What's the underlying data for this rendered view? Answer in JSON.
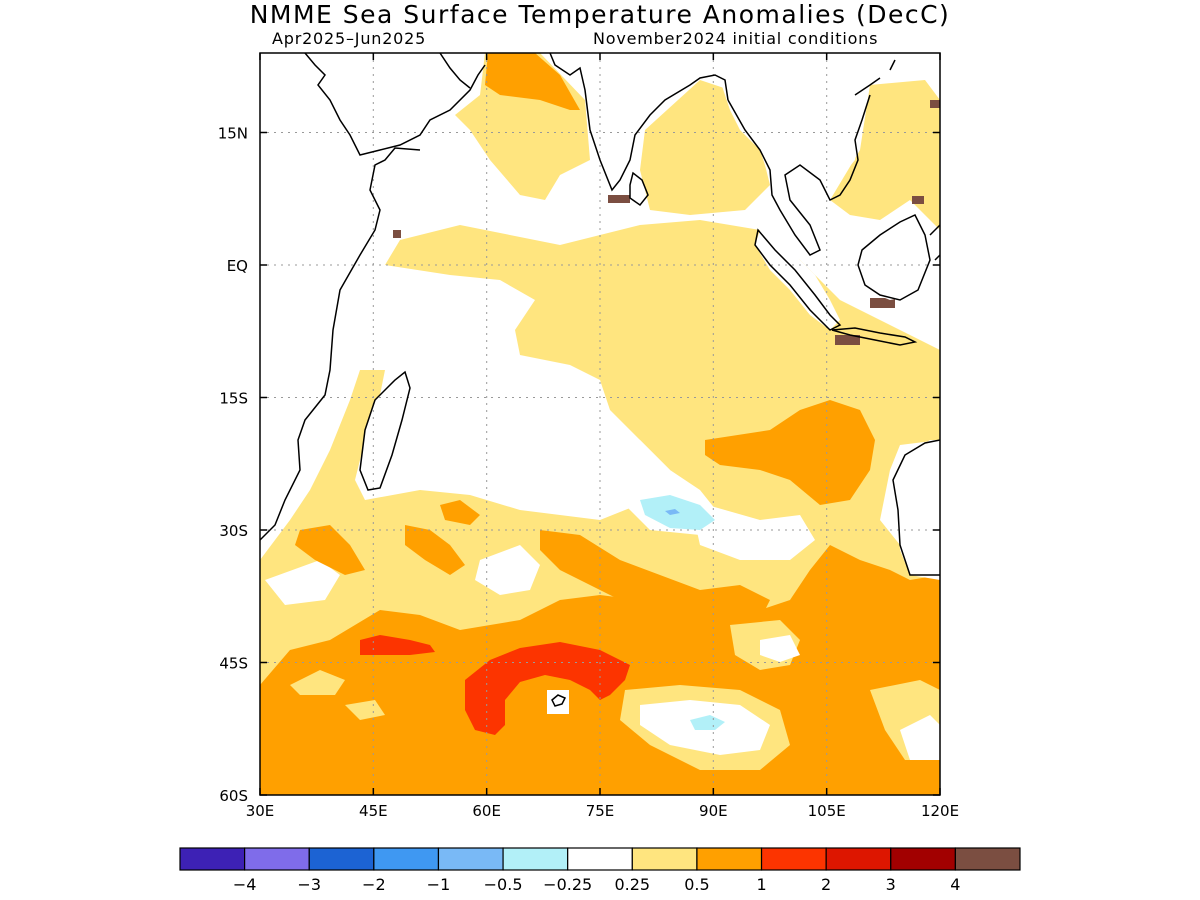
{
  "title": "NMME Sea Surface Temperature Anomalies (DecC)",
  "subtitle_left": "Apr2025–Jun2025",
  "subtitle_right": "November2024 initial conditions",
  "map": {
    "lon_range": [
      30,
      120
    ],
    "lat_range": [
      -60,
      24
    ],
    "x_ticks": [
      {
        "value": 30,
        "label": "30E"
      },
      {
        "value": 45,
        "label": "45E"
      },
      {
        "value": 60,
        "label": "60E"
      },
      {
        "value": 75,
        "label": "75E"
      },
      {
        "value": 90,
        "label": "90E"
      },
      {
        "value": 105,
        "label": "105E"
      },
      {
        "value": 120,
        "label": "120E"
      }
    ],
    "y_ticks": [
      {
        "value": 15,
        "label": "15N"
      },
      {
        "value": 0,
        "label": "EQ"
      },
      {
        "value": -15,
        "label": "15S"
      },
      {
        "value": -30,
        "label": "30S"
      },
      {
        "value": -45,
        "label": "45S"
      },
      {
        "value": -60,
        "label": "60S"
      }
    ],
    "grid": true
  },
  "colorbar": {
    "colors": [
      "#3d21b5",
      "#7f6cea",
      "#1c63d3",
      "#3f98f2",
      "#79b9f6",
      "#b2f0f8",
      "#ffffff",
      "#ffe57f",
      "#ffa000",
      "#fc3400",
      "#dd1600",
      "#a20000",
      "#7b4e41"
    ],
    "labels": [
      "−4",
      "−3",
      "−2",
      "−1",
      "−0.5",
      "−0.25",
      "0.25",
      "0.5",
      "1",
      "2",
      "3",
      "4"
    ]
  }
}
